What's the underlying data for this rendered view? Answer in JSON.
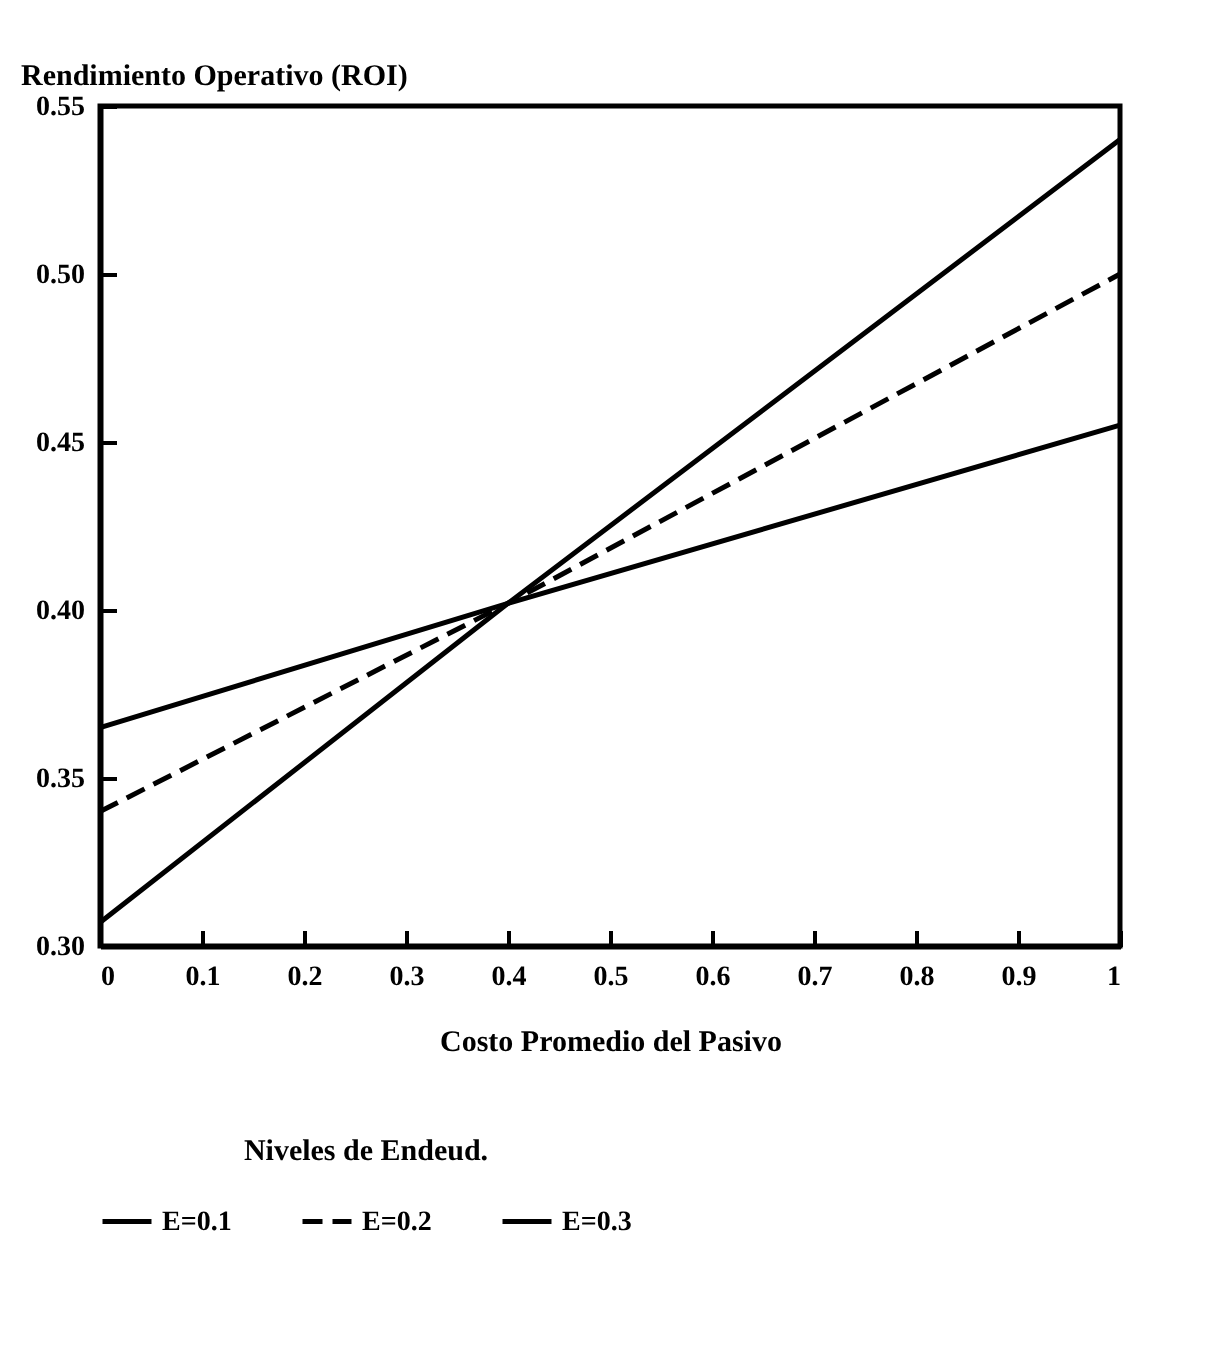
{
  "chart_data": {
    "type": "line",
    "xlabel": "Costo Promedio del Pasivo",
    "ylabel": "Rendimiento Operativo (ROI)",
    "legend_title": "Niveles de Endeud.",
    "x": [
      0,
      0.4,
      1
    ],
    "series": [
      {
        "name": "E=0.1",
        "color": "#000000",
        "line_style": "solid",
        "values": [
          0.307,
          0.402,
          0.54
        ]
      },
      {
        "name": "E=0.2",
        "color": "#000000",
        "line_style": "dashed",
        "values": [
          0.34,
          0.402,
          0.5
        ]
      },
      {
        "name": "E=0.3",
        "color": "#000000",
        "line_style": "solid",
        "values": [
          0.365,
          0.402,
          0.455
        ]
      }
    ],
    "xlim": [
      0,
      1
    ],
    "xticks": [
      0,
      0.1,
      0.2,
      0.3,
      0.4,
      0.5,
      0.6,
      0.7,
      0.8,
      0.9,
      1
    ],
    "ylim": [
      0.3,
      0.55
    ],
    "yticks": [
      {
        "value": 0.3,
        "label": "0.30"
      },
      {
        "value": 0.35,
        "label": "0.35"
      },
      {
        "value": 0.4,
        "label": "0.40"
      },
      {
        "value": 0.45,
        "label": "0.45"
      },
      {
        "value": 0.5,
        "label": "0.50"
      },
      {
        "value": 0.55,
        "label": "0.55"
      }
    ],
    "grid": false,
    "legend": "bottom",
    "marker": "none"
  }
}
